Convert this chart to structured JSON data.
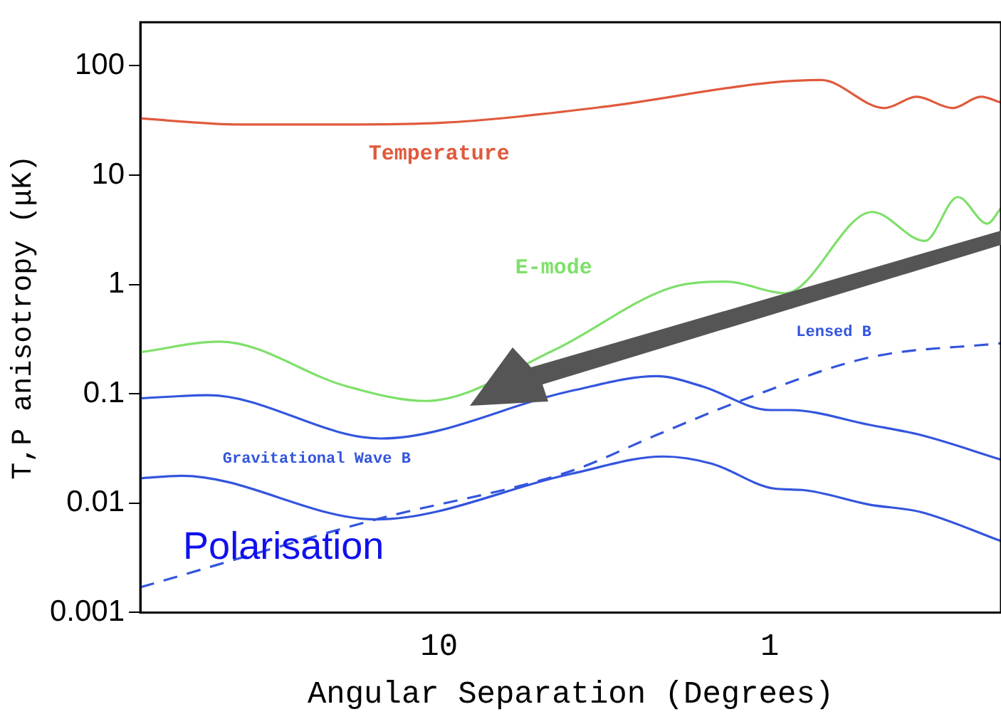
{
  "chart_data": {
    "type": "line",
    "xlabel": "Angular Separation (Degrees)",
    "ylabel": "T,P anisotropy (μK)",
    "log": "xy",
    "xlim": [
      80,
      0.2
    ],
    "xticks": [
      10,
      1
    ],
    "ylim": [
      0.001,
      250
    ],
    "yticks": [
      0.001,
      0.01,
      0.1,
      1,
      10,
      100
    ],
    "grid": false,
    "legend": false,
    "marker": "none",
    "annotations": [
      "Polarisation"
    ],
    "series": [
      {
        "name": "Temperature",
        "color": "#e05a3c",
        "x": [
          80,
          40,
          20,
          10,
          3.2,
          1,
          0.7,
          0.45,
          0.36,
          0.28,
          0.23,
          0.2
        ],
        "values": [
          33,
          29,
          29,
          30,
          42,
          70,
          74,
          41,
          52,
          41,
          52,
          46
        ]
      },
      {
        "name": "E-mode",
        "color": "#7ee06a",
        "x": [
          80,
          46,
          19,
          11,
          4.5,
          2,
          1.35,
          0.9,
          0.49,
          0.34,
          0.27,
          0.22,
          0.2
        ],
        "values": [
          0.24,
          0.3,
          0.117,
          0.086,
          0.25,
          0.93,
          1.06,
          0.83,
          4.6,
          2.5,
          6.3,
          3.6,
          5
        ]
      },
      {
        "name": "Lensed B",
        "color": "#3355dd",
        "line_style": "dashed",
        "x": [
          80,
          15.5,
          4,
          2.2,
          1.17,
          0.5,
          0.2
        ],
        "values": [
          0.0017,
          0.0071,
          0.0196,
          0.042,
          0.091,
          0.215,
          0.29
        ]
      },
      {
        "name": "Gravitational Wave B",
        "color": "#3355dd",
        "x": [
          80,
          50,
          15,
          4,
          2.2,
          1.6,
          1,
          0.87,
          0.5,
          0.35,
          0.2
        ],
        "values": [
          0.091,
          0.097,
          0.039,
          0.106,
          0.145,
          0.117,
          0.071,
          0.071,
          0.052,
          0.042,
          0.025
        ]
      },
      {
        "color": "#3355dd",
        "x": [
          80,
          60,
          15.5,
          4,
          2.1,
          1.5,
          0.97,
          0.8,
          0.5,
          0.35,
          0.2
        ],
        "values": [
          0.0169,
          0.0178,
          0.0071,
          0.0185,
          0.0267,
          0.023,
          0.0136,
          0.0132,
          0.0097,
          0.0083,
          0.0045
        ]
      }
    ]
  }
}
